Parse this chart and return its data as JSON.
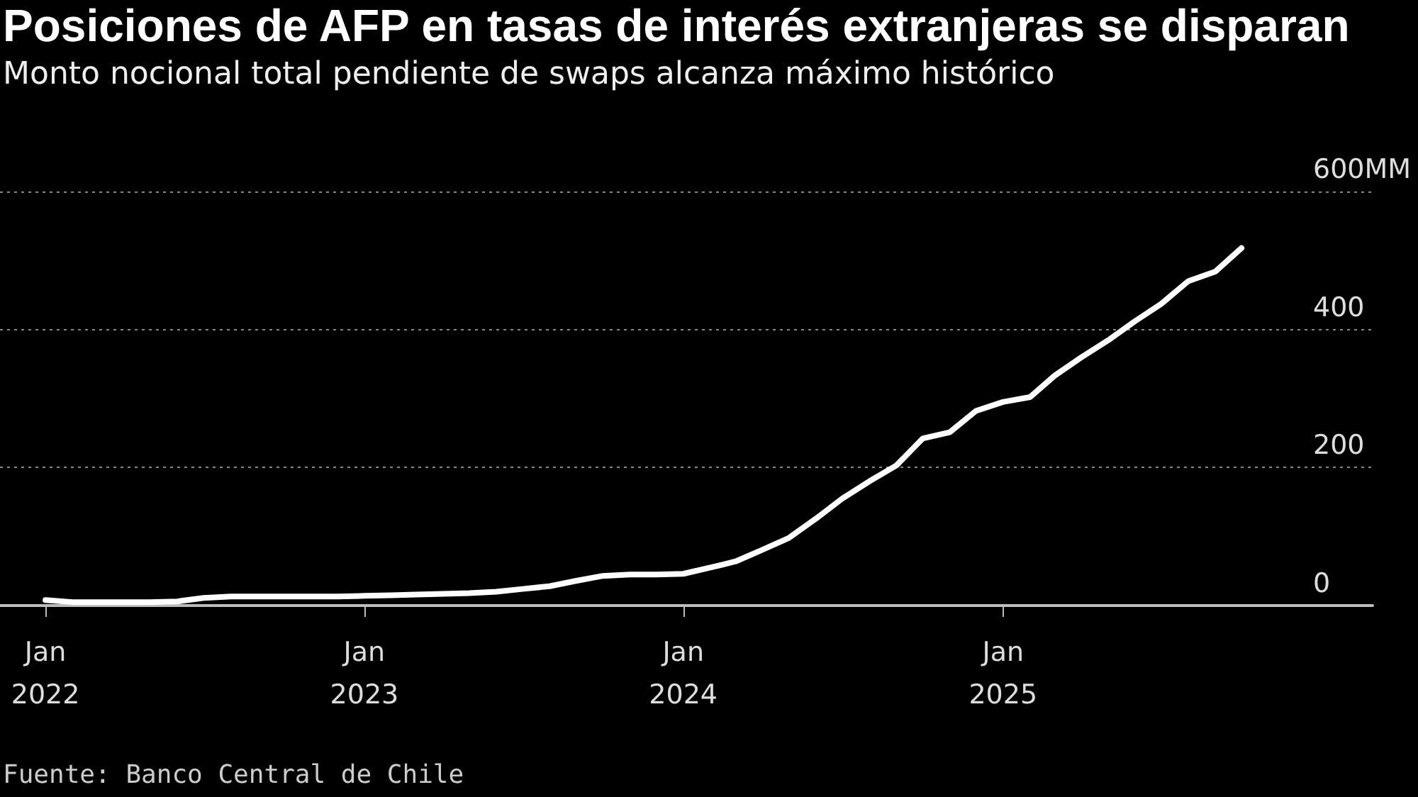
{
  "chart_data": {
    "type": "line",
    "title": "Posiciones de AFP en tasas de interés extranjeras se disparan",
    "subtitle": "Monto nocional total pendiente de swaps alcanza máximo histórico",
    "annotations": [
      "Fuente: Banco Central de Chile"
    ],
    "x": [
      "2022-01",
      "2022-02",
      "2022-03",
      "2022-04",
      "2022-05",
      "2022-06",
      "2022-07",
      "2022-08",
      "2022-09",
      "2022-10",
      "2022-11",
      "2022-12",
      "2023-01",
      "2023-02",
      "2023-03",
      "2023-04",
      "2023-05",
      "2023-06",
      "2023-07",
      "2023-08",
      "2023-09",
      "2023-10",
      "2023-11",
      "2023-12",
      "2024-01",
      "2024-02",
      "2024-03",
      "2024-04",
      "2024-05",
      "2024-06",
      "2024-07",
      "2024-08",
      "2024-09",
      "2024-10",
      "2024-11",
      "2024-12",
      "2025-01",
      "2025-02",
      "2025-03",
      "2025-04",
      "2025-05",
      "2025-06",
      "2025-07",
      "2025-08",
      "2025-09",
      "2025-10"
    ],
    "series": [
      {
        "color": "#ffffff",
        "values": [
          8,
          5,
          5,
          5,
          5,
          6,
          11,
          13,
          13,
          13,
          13,
          13,
          14,
          15,
          16,
          17,
          18,
          20,
          24,
          28,
          36,
          43,
          45,
          45,
          46,
          55,
          64,
          81,
          98,
          126,
          155,
          180,
          203,
          242,
          251,
          282,
          295,
          302,
          333,
          360,
          384,
          412,
          437,
          470,
          484,
          518
        ]
      }
    ],
    "xlim": [
      "2021-11-10",
      "2026-02-28"
    ],
    "xticks": [
      {
        "value": "2022-01",
        "label": "Jan\n2022"
      },
      {
        "value": "2023-01",
        "label": "Jan\n2023"
      },
      {
        "value": "2024-01",
        "label": "Jan\n2024"
      },
      {
        "value": "2025-01",
        "label": "Jan\n2025"
      }
    ],
    "ylim": [
      0,
      600
    ],
    "yticks": [
      0,
      200,
      400,
      {
        "value": 600,
        "label": "600MM"
      }
    ],
    "grid": "y",
    "marker": "none",
    "line_style": "solid"
  }
}
